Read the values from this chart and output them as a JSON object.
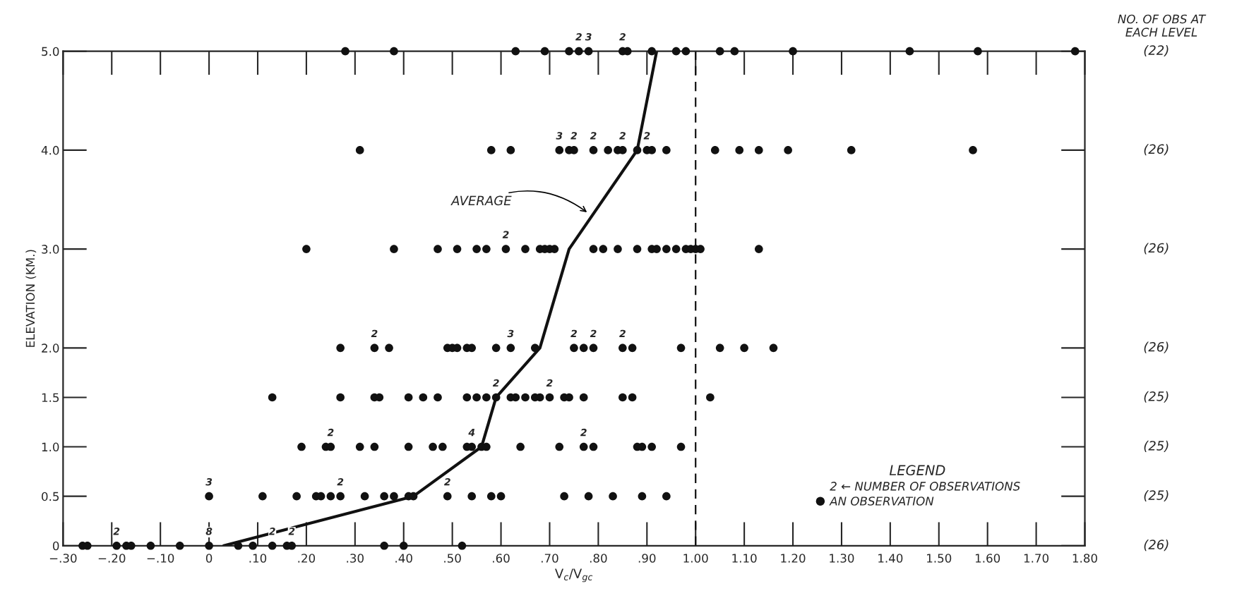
{
  "chart_data": {
    "type": "scatter",
    "xlabel": "V$_{c}$/V$_{gc}$",
    "ylabel": "ELEVATION (KM.)",
    "legend_title": "LEGEND",
    "xlim": [
      -0.3,
      1.8
    ],
    "xticks": [
      {
        "value": -0.3,
        "label": "−.30"
      },
      {
        "value": -0.2,
        "label": "−.20"
      },
      {
        "value": -0.1,
        "label": "−.10"
      },
      0,
      {
        "value": 0.1,
        "label": ".10"
      },
      {
        "value": 0.2,
        "label": ".20"
      },
      {
        "value": 0.3,
        "label": ".30"
      },
      {
        "value": 0.4,
        "label": ".40"
      },
      {
        "value": 0.5,
        "label": ".50"
      },
      {
        "value": 0.6,
        "label": ".60"
      },
      {
        "value": 0.7,
        "label": ".70"
      },
      {
        "value": 0.8,
        "label": ".80"
      },
      {
        "value": 0.9,
        "label": ".90"
      },
      {
        "value": 1.0,
        "label": "1.00"
      },
      {
        "value": 1.1,
        "label": "1.10"
      },
      {
        "value": 1.2,
        "label": "1.20"
      },
      {
        "value": 1.3,
        "label": "1.30"
      },
      {
        "value": 1.4,
        "label": "1.40"
      },
      {
        "value": 1.5,
        "label": "1.50"
      },
      {
        "value": 1.6,
        "label": "1.60"
      },
      {
        "value": 1.7,
        "label": "1.70"
      },
      {
        "value": 1.8,
        "label": "1.80"
      }
    ],
    "ylim": [
      0,
      5
    ],
    "yticks": [
      0,
      0.5,
      {
        "value": 1,
        "label": "1.0"
      },
      1.5,
      {
        "value": 2,
        "label": "2.0"
      },
      {
        "value": 3,
        "label": "3.0"
      },
      {
        "value": 4,
        "label": "4.0"
      },
      {
        "value": 5,
        "label": "5.0"
      }
    ],
    "grid": false,
    "legend": "bottom right",
    "ref_lines": [
      {
        "axis": "x",
        "value": 1.0,
        "line_style": "dashed",
        "color": "#111111"
      }
    ],
    "series": [
      {
        "name": "AN OBSERVATION",
        "color": "#111111",
        "marker": "circle",
        "x": [
          0.28,
          0.38,
          0.63,
          0.69,
          0.74,
          0.76,
          0.78,
          0.85,
          0.86,
          0.91,
          0.96,
          0.98,
          1.05,
          1.08,
          1.2,
          1.44,
          1.58,
          1.78,
          0.31,
          0.58,
          0.62,
          0.72,
          0.74,
          0.75,
          0.79,
          0.82,
          0.84,
          0.85,
          0.88,
          0.9,
          0.91,
          0.94,
          1.04,
          1.09,
          1.13,
          1.19,
          1.32,
          1.57,
          0.2,
          0.38,
          0.47,
          0.51,
          0.55,
          0.57,
          0.61,
          0.65,
          0.68,
          0.69,
          0.7,
          0.71,
          0.79,
          0.81,
          0.84,
          0.88,
          0.91,
          0.92,
          0.94,
          0.96,
          0.98,
          0.99,
          1.0,
          1.01,
          1.13,
          0.27,
          0.34,
          0.37,
          0.49,
          0.5,
          0.51,
          0.53,
          0.54,
          0.59,
          0.62,
          0.67,
          0.75,
          0.77,
          0.79,
          0.85,
          0.87,
          0.97,
          1.05,
          1.1,
          1.16,
          0.13,
          0.27,
          0.34,
          0.35,
          0.41,
          0.44,
          0.47,
          0.53,
          0.55,
          0.57,
          0.59,
          0.62,
          0.63,
          0.65,
          0.67,
          0.68,
          0.7,
          0.73,
          0.74,
          0.77,
          0.85,
          0.87,
          1.03,
          0.19,
          0.24,
          0.25,
          0.31,
          0.34,
          0.41,
          0.46,
          0.48,
          0.53,
          0.54,
          0.56,
          0.57,
          0.64,
          0.72,
          0.77,
          0.79,
          0.88,
          0.89,
          0.91,
          0.97,
          0.0,
          0.11,
          0.18,
          0.22,
          0.23,
          0.25,
          0.27,
          0.32,
          0.36,
          0.38,
          0.41,
          0.42,
          0.49,
          0.54,
          0.58,
          0.6,
          0.73,
          0.78,
          0.83,
          0.89,
          0.94,
          -0.26,
          -0.25,
          -0.19,
          -0.17,
          -0.16,
          -0.12,
          -0.06,
          0.0,
          0.06,
          0.09,
          0.13,
          0.16,
          0.17,
          0.36,
          0.4,
          0.52
        ],
        "values": [
          5,
          5,
          5,
          5,
          5,
          5,
          5,
          5,
          5,
          5,
          5,
          5,
          5,
          5,
          5,
          5,
          5,
          5,
          4,
          4,
          4,
          4,
          4,
          4,
          4,
          4,
          4,
          4,
          4,
          4,
          4,
          4,
          4,
          4,
          4,
          4,
          4,
          4,
          3,
          3,
          3,
          3,
          3,
          3,
          3,
          3,
          3,
          3,
          3,
          3,
          3,
          3,
          3,
          3,
          3,
          3,
          3,
          3,
          3,
          3,
          3,
          3,
          3,
          2,
          2,
          2,
          2,
          2,
          2,
          2,
          2,
          2,
          2,
          2,
          2,
          2,
          2,
          2,
          2,
          2,
          2,
          2,
          2,
          1.5,
          1.5,
          1.5,
          1.5,
          1.5,
          1.5,
          1.5,
          1.5,
          1.5,
          1.5,
          1.5,
          1.5,
          1.5,
          1.5,
          1.5,
          1.5,
          1.5,
          1.5,
          1.5,
          1.5,
          1.5,
          1.5,
          1.5,
          1,
          1,
          1,
          1,
          1,
          1,
          1,
          1,
          1,
          1,
          1,
          1,
          1,
          1,
          1,
          1,
          1,
          1,
          1,
          1,
          0.5,
          0.5,
          0.5,
          0.5,
          0.5,
          0.5,
          0.5,
          0.5,
          0.5,
          0.5,
          0.5,
          0.5,
          0.5,
          0.5,
          0.5,
          0.5,
          0.5,
          0.5,
          0.5,
          0.5,
          0.5,
          0,
          0,
          0,
          0,
          0,
          0,
          0,
          0,
          0,
          0,
          0,
          0,
          0,
          0,
          0,
          0
        ]
      },
      {
        "type": "line",
        "color": "#111111",
        "line_style": "solid",
        "x": [
          0.03,
          0.42,
          0.56,
          0.59,
          0.68,
          0.74,
          0.88,
          0.92
        ],
        "values": [
          0,
          0.5,
          1,
          1.5,
          2,
          3,
          4,
          5
        ]
      }
    ],
    "annotations": [
      {
        "text": "AVERAGE",
        "x": 0.78,
        "y": 3.36
      },
      {
        "text": "2",
        "x": 0.76,
        "y": 5
      },
      {
        "text": "3",
        "x": 0.78,
        "y": 5
      },
      {
        "text": "2",
        "x": 0.85,
        "y": 5
      },
      {
        "text": "3",
        "x": 0.72,
        "y": 4
      },
      {
        "text": "2",
        "x": 0.75,
        "y": 4
      },
      {
        "text": "2",
        "x": 0.79,
        "y": 4
      },
      {
        "text": "2",
        "x": 0.85,
        "y": 4
      },
      {
        "text": "2",
        "x": 0.9,
        "y": 4
      },
      {
        "text": "2",
        "x": 0.61,
        "y": 3
      },
      {
        "text": "2",
        "x": 0.34,
        "y": 2
      },
      {
        "text": "3",
        "x": 0.62,
        "y": 2
      },
      {
        "text": "2",
        "x": 0.75,
        "y": 2
      },
      {
        "text": "2",
        "x": 0.79,
        "y": 2
      },
      {
        "text": "2",
        "x": 0.85,
        "y": 2
      },
      {
        "text": "2",
        "x": 0.59,
        "y": 1.5
      },
      {
        "text": "2",
        "x": 0.7,
        "y": 1.5
      },
      {
        "text": "2",
        "x": 0.25,
        "y": 1
      },
      {
        "text": "4",
        "x": 0.54,
        "y": 1
      },
      {
        "text": "2",
        "x": 0.77,
        "y": 1
      },
      {
        "text": "3",
        "x": 0.0,
        "y": 0.5
      },
      {
        "text": "2",
        "x": 0.27,
        "y": 0.5
      },
      {
        "text": "2",
        "x": 0.49,
        "y": 0.5
      },
      {
        "text": "2",
        "x": -0.19,
        "y": 0
      },
      {
        "text": "8",
        "x": 0.0,
        "y": 0
      },
      {
        "text": "2",
        "x": 0.13,
        "y": 0
      },
      {
        "text": "2",
        "x": 0.17,
        "y": 0
      },
      "NO. OF OBS AT\nEACH LEVEL",
      "(22)",
      "(26)",
      "(26)",
      "(26)",
      "(25)",
      "(25)",
      "(25)",
      "(26)",
      "2 ← NUMBER OF OBSERVATIONS"
    ]
  }
}
